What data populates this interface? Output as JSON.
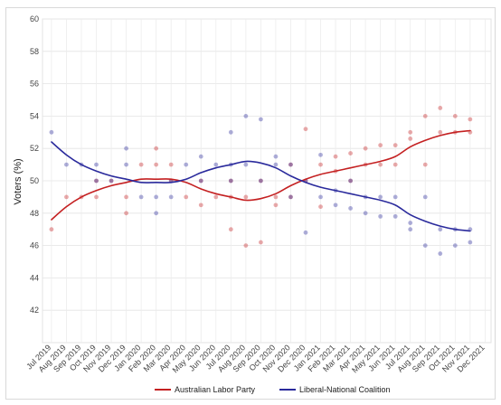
{
  "chart_data": {
    "type": "scatter",
    "ylabel": "Voters (%)",
    "xlabel": "",
    "ylim": [
      40,
      60
    ],
    "yticks": [
      42,
      44,
      46,
      48,
      50,
      52,
      54,
      56,
      58,
      60
    ],
    "grid": true,
    "legend_position": "bottom",
    "categories": [
      "Jul 2019",
      "Aug 2019",
      "Sep 2019",
      "Oct 2019",
      "Nov 2019",
      "Dec 2019",
      "Jan 2020",
      "Feb 2020",
      "Mar 2020",
      "Apr 2020",
      "May 2020",
      "Jun 2020",
      "Jul 2020",
      "Aug 2020",
      "Sep 2020",
      "Oct 2020",
      "Nov 2020",
      "Dec 2020",
      "Jan 2021",
      "Feb 2021",
      "Mar 2021",
      "Apr 2021",
      "May 2021",
      "Jun 2021",
      "Jul 2021",
      "Aug 2021",
      "Sep 2021",
      "Oct 2021",
      "Nov 2021",
      "Dec 2021"
    ],
    "series": [
      {
        "name": "Australian Labor Party",
        "color": "#c42021",
        "trend": [
          [
            "Jul 2019",
            47.6
          ],
          [
            "Aug 2019",
            48.4
          ],
          [
            "Sep 2019",
            49.0
          ],
          [
            "Oct 2019",
            49.4
          ],
          [
            "Nov 2019",
            49.7
          ],
          [
            "Dec 2019",
            49.9
          ],
          [
            "Jan 2020",
            50.1
          ],
          [
            "Feb 2020",
            50.1
          ],
          [
            "Mar 2020",
            50.1
          ],
          [
            "Apr 2020",
            49.9
          ],
          [
            "May 2020",
            49.5
          ],
          [
            "Jun 2020",
            49.2
          ],
          [
            "Jul 2020",
            49.0
          ],
          [
            "Aug 2020",
            48.8
          ],
          [
            "Sep 2020",
            48.9
          ],
          [
            "Oct 2020",
            49.2
          ],
          [
            "Nov 2020",
            49.7
          ],
          [
            "Dec 2020",
            50.1
          ],
          [
            "Jan 2021",
            50.4
          ],
          [
            "Feb 2021",
            50.6
          ],
          [
            "Mar 2021",
            50.8
          ],
          [
            "Apr 2021",
            51.0
          ],
          [
            "May 2021",
            51.2
          ],
          [
            "Jun 2021",
            51.5
          ],
          [
            "Jul 2021",
            52.1
          ],
          [
            "Aug 2021",
            52.5
          ],
          [
            "Sep 2021",
            52.8
          ],
          [
            "Oct 2021",
            53.0
          ],
          [
            "Nov 2021",
            53.1
          ]
        ],
        "polls": [
          [
            "Jul 2019",
            47.0
          ],
          [
            "Aug 2019",
            49.0
          ],
          [
            "Sep 2019",
            49.0
          ],
          [
            "Oct 2019",
            49.0
          ],
          [
            "Oct 2019",
            50.0
          ],
          [
            "Nov 2019",
            50.0
          ],
          [
            "Dec 2019",
            49.0
          ],
          [
            "Dec 2019",
            48.0
          ],
          [
            "Jan 2020",
            51.0
          ],
          [
            "Feb 2020",
            52.0
          ],
          [
            "Feb 2020",
            51.0
          ],
          [
            "Mar 2020",
            51.0
          ],
          [
            "Mar 2020",
            50.0
          ],
          [
            "Apr 2020",
            49.0
          ],
          [
            "May 2020",
            48.5
          ],
          [
            "May 2020",
            50.0
          ],
          [
            "Jun 2020",
            49.0
          ],
          [
            "Jul 2020",
            50.0
          ],
          [
            "Jul 2020",
            49.0
          ],
          [
            "Jul 2020",
            47.0
          ],
          [
            "Aug 2020",
            46.0
          ],
          [
            "Aug 2020",
            49.0
          ],
          [
            "Sep 2020",
            46.2
          ],
          [
            "Sep 2020",
            50.0
          ],
          [
            "Oct 2020",
            49.0
          ],
          [
            "Oct 2020",
            48.5
          ],
          [
            "Nov 2020",
            49.0
          ],
          [
            "Nov 2020",
            51.0
          ],
          [
            "Dec 2020",
            53.2
          ],
          [
            "Dec 2020",
            50.0
          ],
          [
            "Jan 2021",
            48.4
          ],
          [
            "Jan 2021",
            51.0
          ],
          [
            "Feb 2021",
            51.5
          ],
          [
            "Feb 2021",
            50.6
          ],
          [
            "Mar 2021",
            51.7
          ],
          [
            "Mar 2021",
            50.0
          ],
          [
            "Apr 2021",
            52.0
          ],
          [
            "Apr 2021",
            51.0
          ],
          [
            "May 2021",
            52.2
          ],
          [
            "May 2021",
            51.0
          ],
          [
            "Jun 2021",
            52.2
          ],
          [
            "Jun 2021",
            51.0
          ],
          [
            "Jul 2021",
            52.6
          ],
          [
            "Jul 2021",
            53.0
          ],
          [
            "Aug 2021",
            54.0
          ],
          [
            "Aug 2021",
            51.0
          ],
          [
            "Sep 2021",
            54.5
          ],
          [
            "Sep 2021",
            53.0
          ],
          [
            "Oct 2021",
            54.0
          ],
          [
            "Oct 2021",
            53.0
          ],
          [
            "Nov 2021",
            53.0
          ],
          [
            "Nov 2021",
            53.8
          ]
        ]
      },
      {
        "name": "Liberal-National Coalition",
        "color": "#2a2a9c",
        "trend": [
          [
            "Jul 2019",
            52.4
          ],
          [
            "Aug 2019",
            51.6
          ],
          [
            "Sep 2019",
            51.0
          ],
          [
            "Oct 2019",
            50.6
          ],
          [
            "Nov 2019",
            50.3
          ],
          [
            "Dec 2019",
            50.1
          ],
          [
            "Jan 2020",
            49.9
          ],
          [
            "Feb 2020",
            49.9
          ],
          [
            "Mar 2020",
            49.9
          ],
          [
            "Apr 2020",
            50.1
          ],
          [
            "May 2020",
            50.5
          ],
          [
            "Jun 2020",
            50.8
          ],
          [
            "Jul 2020",
            51.0
          ],
          [
            "Aug 2020",
            51.2
          ],
          [
            "Sep 2020",
            51.1
          ],
          [
            "Oct 2020",
            50.8
          ],
          [
            "Nov 2020",
            50.3
          ],
          [
            "Dec 2020",
            49.9
          ],
          [
            "Jan 2021",
            49.6
          ],
          [
            "Feb 2021",
            49.4
          ],
          [
            "Mar 2021",
            49.2
          ],
          [
            "Apr 2021",
            49.0
          ],
          [
            "May 2021",
            48.8
          ],
          [
            "Jun 2021",
            48.5
          ],
          [
            "Jul 2021",
            47.9
          ],
          [
            "Aug 2021",
            47.5
          ],
          [
            "Sep 2021",
            47.2
          ],
          [
            "Oct 2021",
            47.0
          ],
          [
            "Nov 2021",
            46.9
          ]
        ],
        "polls": [
          [
            "Jul 2019",
            53.0
          ],
          [
            "Aug 2019",
            51.0
          ],
          [
            "Sep 2019",
            51.0
          ],
          [
            "Oct 2019",
            51.0
          ],
          [
            "Oct 2019",
            50.0
          ],
          [
            "Nov 2019",
            50.0
          ],
          [
            "Dec 2019",
            51.0
          ],
          [
            "Dec 2019",
            52.0
          ],
          [
            "Jan 2020",
            49.0
          ],
          [
            "Feb 2020",
            48.0
          ],
          [
            "Feb 2020",
            49.0
          ],
          [
            "Mar 2020",
            49.0
          ],
          [
            "Mar 2020",
            50.0
          ],
          [
            "Apr 2020",
            51.0
          ],
          [
            "May 2020",
            51.5
          ],
          [
            "May 2020",
            50.0
          ],
          [
            "Jun 2020",
            51.0
          ],
          [
            "Jul 2020",
            50.0
          ],
          [
            "Jul 2020",
            51.0
          ],
          [
            "Jul 2020",
            53.0
          ],
          [
            "Aug 2020",
            54.0
          ],
          [
            "Aug 2020",
            51.0
          ],
          [
            "Sep 2020",
            53.8
          ],
          [
            "Sep 2020",
            50.0
          ],
          [
            "Oct 2020",
            51.0
          ],
          [
            "Oct 2020",
            51.5
          ],
          [
            "Nov 2020",
            51.0
          ],
          [
            "Nov 2020",
            49.0
          ],
          [
            "Dec 2020",
            46.8
          ],
          [
            "Dec 2020",
            50.0
          ],
          [
            "Jan 2021",
            51.6
          ],
          [
            "Jan 2021",
            49.0
          ],
          [
            "Feb 2021",
            48.5
          ],
          [
            "Feb 2021",
            49.4
          ],
          [
            "Mar 2021",
            48.3
          ],
          [
            "Mar 2021",
            50.0
          ],
          [
            "Apr 2021",
            48.0
          ],
          [
            "Apr 2021",
            49.0
          ],
          [
            "May 2021",
            47.8
          ],
          [
            "May 2021",
            49.0
          ],
          [
            "Jun 2021",
            47.8
          ],
          [
            "Jun 2021",
            49.0
          ],
          [
            "Jul 2021",
            47.4
          ],
          [
            "Jul 2021",
            47.0
          ],
          [
            "Aug 2021",
            46.0
          ],
          [
            "Aug 2021",
            49.0
          ],
          [
            "Sep 2021",
            45.5
          ],
          [
            "Sep 2021",
            47.0
          ],
          [
            "Oct 2021",
            46.0
          ],
          [
            "Oct 2021",
            47.0
          ],
          [
            "Nov 2021",
            47.0
          ],
          [
            "Nov 2021",
            46.2
          ]
        ]
      }
    ]
  }
}
